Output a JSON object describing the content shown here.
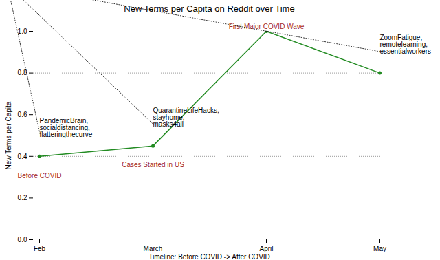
{
  "chart_data": {
    "type": "line",
    "title": "New Terms per Capita on Reddit over Time",
    "x_label": "Timeline: Before COVID -> After COVID",
    "y_label": "New Terms per Capita",
    "categories": [
      "Feb",
      "March",
      "April",
      "May"
    ],
    "values": [
      0.4,
      0.45,
      1.0,
      0.8
    ],
    "color": "#228b22",
    "marker": "circle",
    "ylim": [
      0,
      1
    ],
    "yticks": [
      {
        "value": 0,
        "label": "0.0"
      },
      {
        "value": 0.2,
        "label": "0.2"
      },
      {
        "value": 0.4,
        "label": "0.4"
      },
      {
        "value": 0.6,
        "label": "0.6"
      },
      {
        "value": 0.8,
        "label": "0.8"
      },
      {
        "value": 1,
        "label": "1.0"
      }
    ],
    "grid": false,
    "hlines": [
      0.4,
      0.8
    ],
    "annotations": [
      {
        "category": "Feb",
        "text": "PandemicBrain,\nsocialdistancing,\nflatteringthecurve"
      },
      {
        "category": "March",
        "text": "QuarantineLifeHacks,\nstayhome,\nmasks4all"
      },
      {
        "category": "May",
        "text": "ZoomFatigue,\nremotelearning,\nessentialworkers"
      }
    ],
    "event_labels": [
      {
        "category": "Feb",
        "text": "Before COVID"
      },
      {
        "category": "March",
        "text": "Cases Started in US"
      },
      {
        "category": "April",
        "text": "First Major COVID Wave"
      }
    ]
  }
}
